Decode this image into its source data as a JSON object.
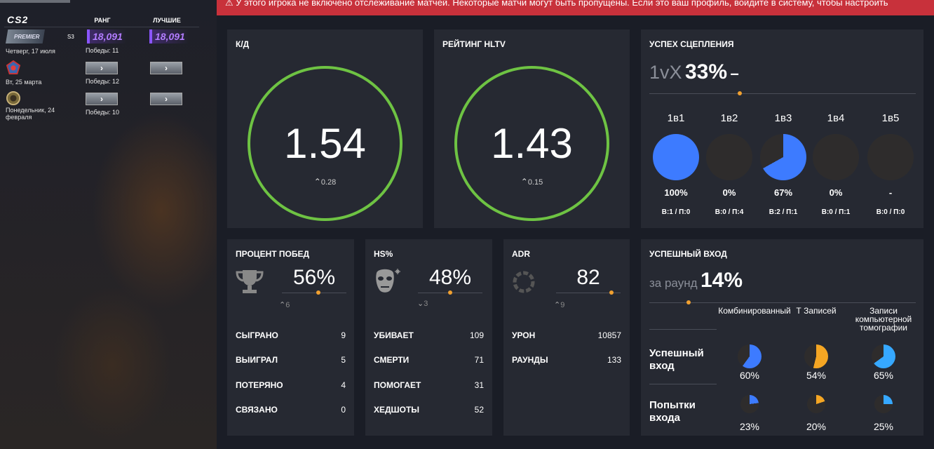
{
  "sidebar": {
    "game": "CS2",
    "col_rank": "РАНГ",
    "col_best": "ЛУЧШИЕ",
    "rows": [
      {
        "mode": "PREMIER",
        "season": "S3",
        "date": "Четверг, 17 июля",
        "rank": "18,091",
        "best": "18,091",
        "wins": "Победы: 11"
      },
      {
        "date": "Вт, 25 марта",
        "wins": "Победы: 12",
        "btn": "›"
      },
      {
        "date": "Понедельник, 24 февраля",
        "wins": "Победы: 10",
        "btn": "›"
      }
    ]
  },
  "banner": {
    "text": "⚠ У этого игрока не включено отслеживание матчей. Некоторые матчи могут быть пропущены. Если это ваш профиль, войдите в систему, чтобы настроить"
  },
  "kd": {
    "title": "К/Д",
    "value": "1.54",
    "delta": "0.28"
  },
  "hltv": {
    "title": "РЕЙТИНГ HLTV",
    "value": "1.43",
    "delta": "0.15"
  },
  "clutch": {
    "title": "УСПЕХ СЦЕПЛЕНИЯ",
    "prefix": "1vX",
    "value": "33%",
    "dash": "–",
    "items": [
      {
        "label": "1в1",
        "pct": "100%",
        "fraction": 1.0,
        "wl": "В:1 / П:0"
      },
      {
        "label": "1в2",
        "pct": "0%",
        "fraction": 0,
        "wl": "В:0 / П:4"
      },
      {
        "label": "1в3",
        "pct": "67%",
        "fraction": 0.67,
        "wl": "В:2 / П:1"
      },
      {
        "label": "1в4",
        "pct": "0%",
        "fraction": 0,
        "wl": "В:0 / П:1"
      },
      {
        "label": "1в5",
        "pct": "-",
        "fraction": 0,
        "wl": "В:0 / П:0"
      }
    ]
  },
  "winrate": {
    "title": "ПРОЦЕНТ ПОБЕД",
    "icon": "trophy-icon",
    "value": "56%",
    "delta": "6",
    "delta_dir": "up",
    "rows": [
      {
        "label": "СЫГРАНО",
        "value": "9"
      },
      {
        "label": "ВЫИГРАЛ",
        "value": "5"
      },
      {
        "label": "ПОТЕРЯНО",
        "value": "4"
      },
      {
        "label": "СВЯЗАНО",
        "value": "0"
      }
    ]
  },
  "hs": {
    "title": "HS%",
    "icon": "headshot-icon",
    "value": "48%",
    "delta": "3",
    "delta_dir": "down",
    "rows": [
      {
        "label": "УБИВАЕТ",
        "value": "109"
      },
      {
        "label": "СМЕРТИ",
        "value": "71"
      },
      {
        "label": "ПОМОГАЕТ",
        "value": "31"
      },
      {
        "label": "ХЕДШОТЫ",
        "value": "52"
      }
    ]
  },
  "adr": {
    "title": "ADR",
    "icon": "damage-ring-icon",
    "value": "82",
    "delta": "9",
    "delta_dir": "up",
    "rows": [
      {
        "label": "УРОН",
        "value": "10857"
      },
      {
        "label": "РАУНДЫ",
        "value": "133"
      }
    ]
  },
  "entry": {
    "title": "УСПЕШНЫЙ ВХОД",
    "prefix": "за раунд",
    "value": "14%",
    "columns": [
      "Комбинированный",
      "Т Записей",
      "Записи компьютерной томографии"
    ],
    "rows": [
      {
        "label": "Успешный вход",
        "values": [
          {
            "pct": "60%",
            "fraction": 0.6,
            "color": "#3d7bff"
          },
          {
            "pct": "54%",
            "fraction": 0.54,
            "color": "#f5a623"
          },
          {
            "pct": "65%",
            "fraction": 0.65,
            "color": "#36a8ff"
          }
        ]
      },
      {
        "label": "Попытки входа",
        "values": [
          {
            "pct": "23%",
            "fraction": 0.23,
            "color": "#3d7bff"
          },
          {
            "pct": "20%",
            "fraction": 0.2,
            "color": "#f5a623"
          },
          {
            "pct": "25%",
            "fraction": 0.25,
            "color": "#36a8ff"
          }
        ]
      }
    ]
  },
  "colors": {
    "accent_green": "#6ec343",
    "accent_orange": "#f0a030",
    "pie_blue": "#3d7bff",
    "banner_red": "#c8313b",
    "rating_purple": "#b27cff"
  }
}
